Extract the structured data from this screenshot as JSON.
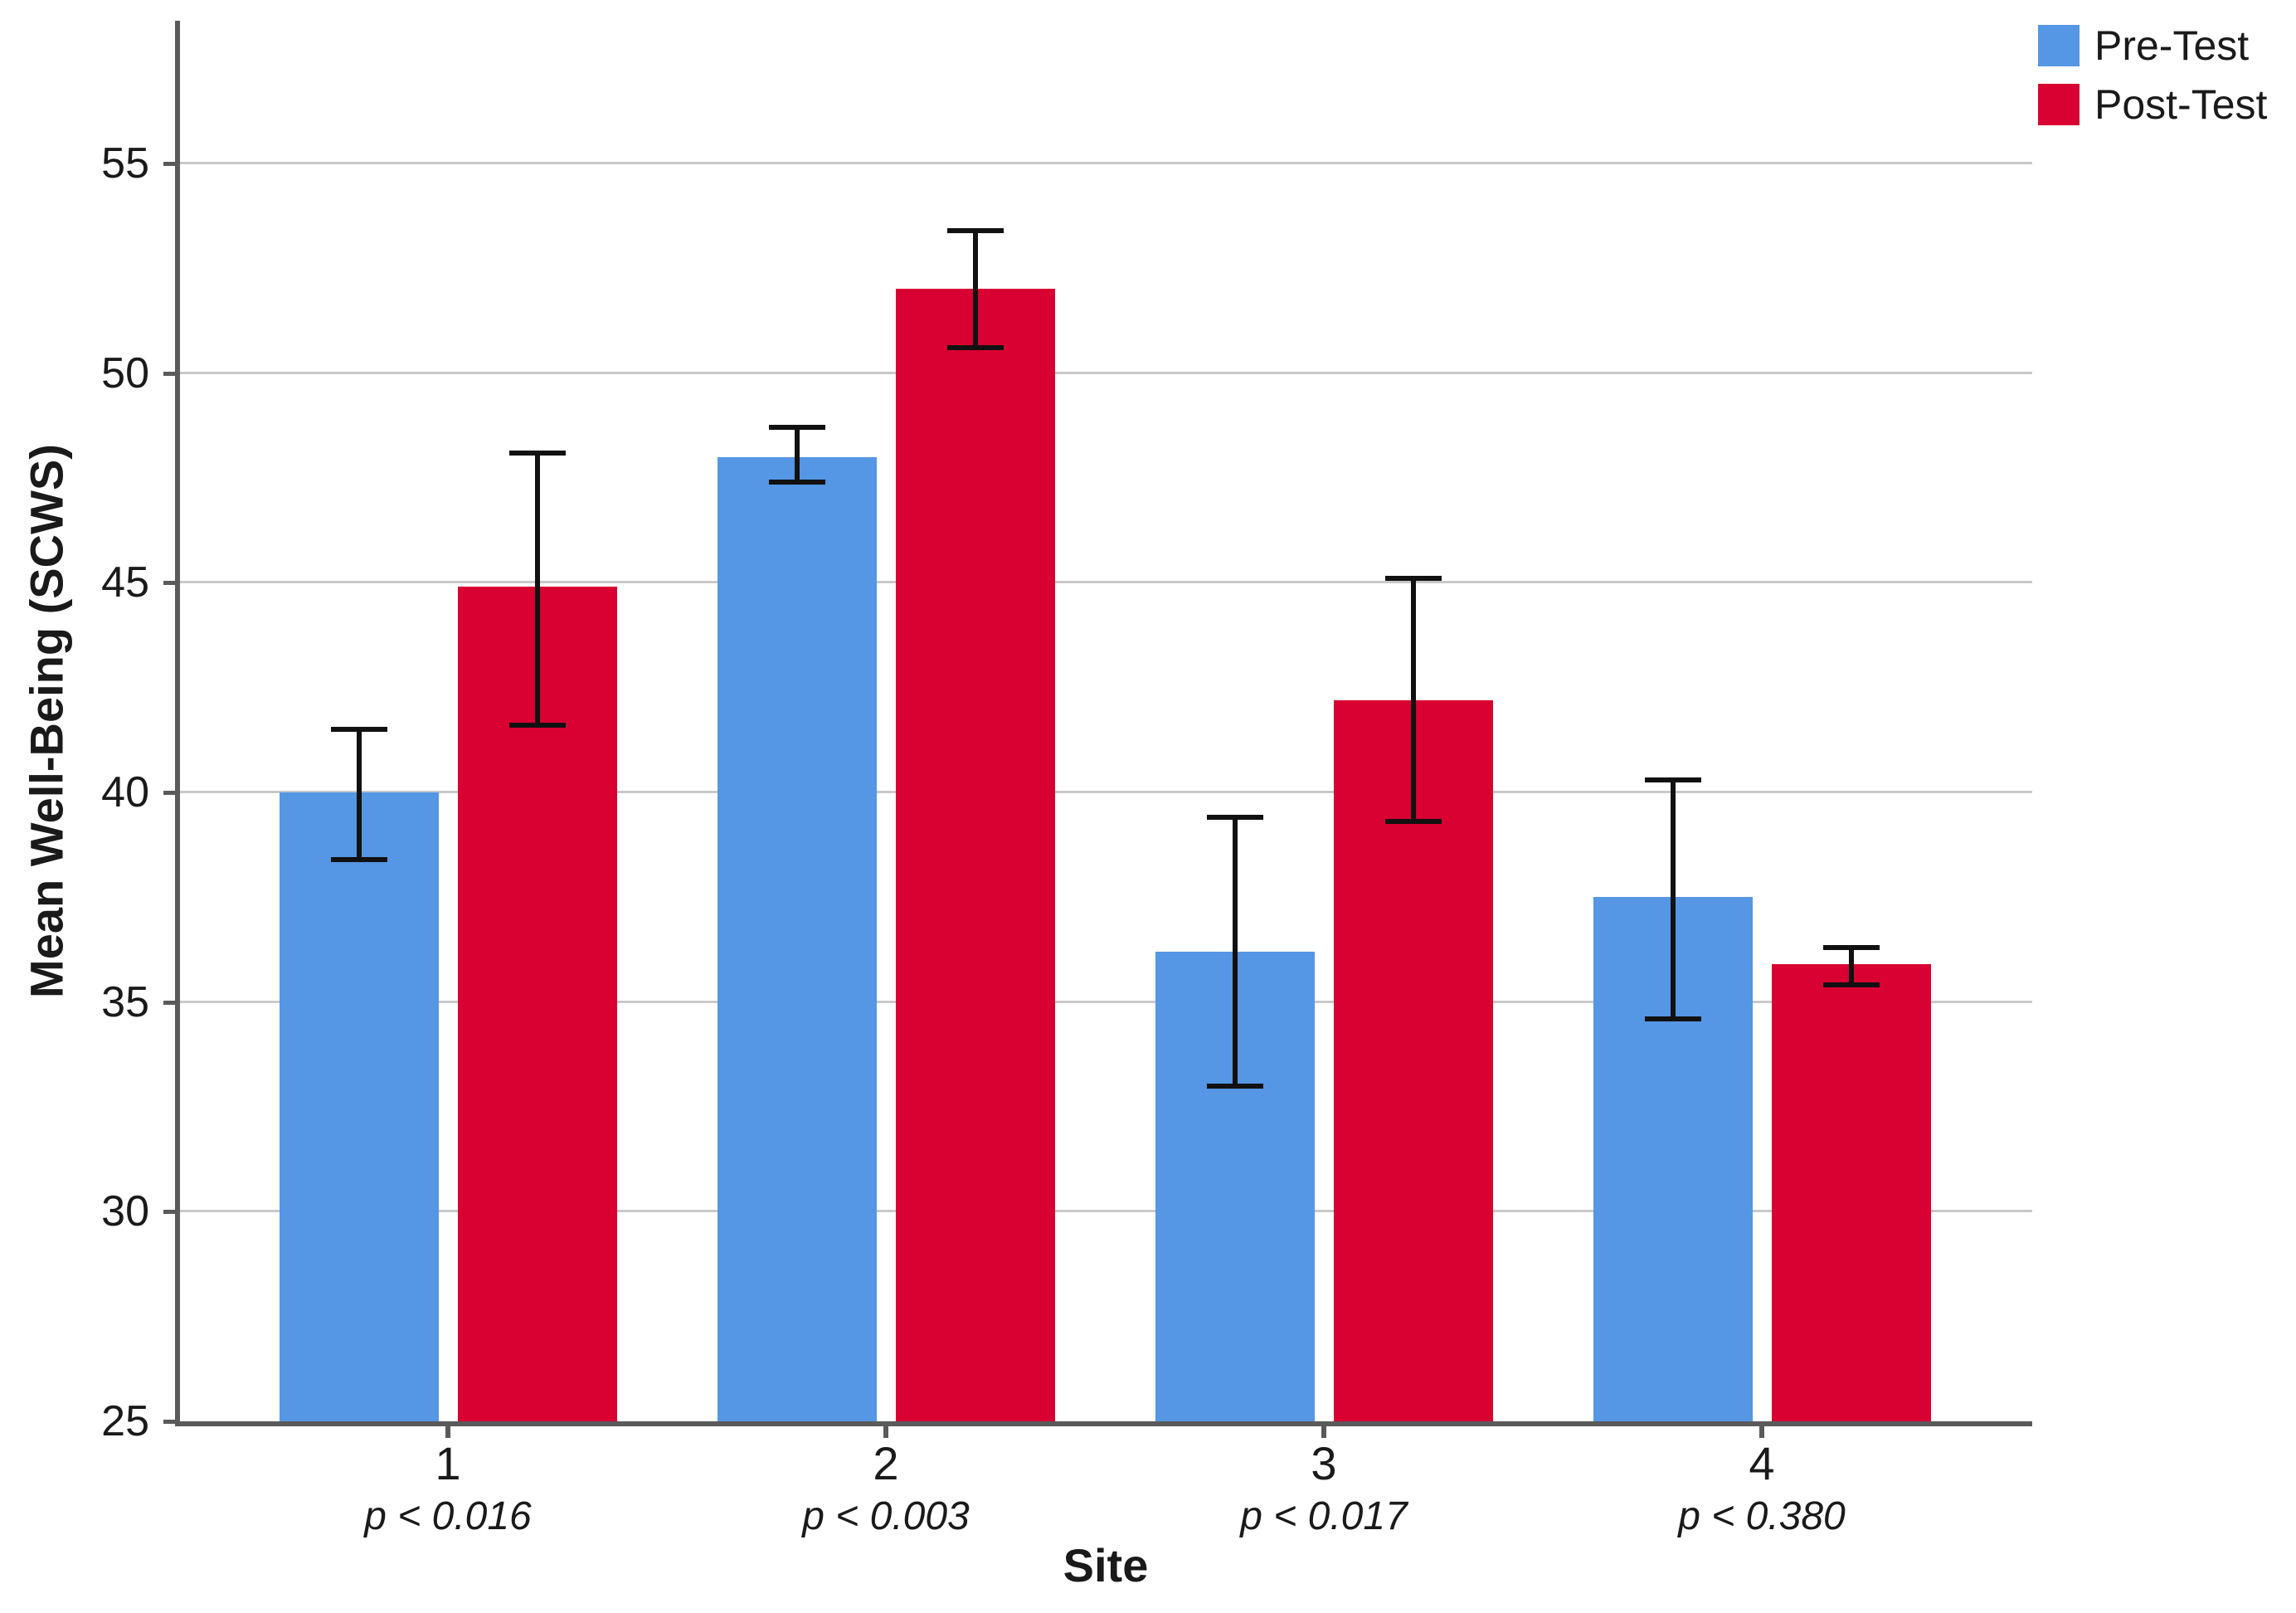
{
  "chart_data": {
    "type": "bar",
    "title": "",
    "xlabel": "Site",
    "ylabel": "Mean Well-Being (SCWS)",
    "ylim": [
      25,
      58.4
    ],
    "yticks": [
      25,
      30,
      35,
      40,
      45,
      50,
      55
    ],
    "grid": "horizontal-light-gray",
    "legend_position": "top-right-outside",
    "error_bars": true,
    "categories": [
      {
        "label": "1",
        "sublabel": "p < 0.016"
      },
      {
        "label": "2",
        "sublabel": "p < 0.003"
      },
      {
        "label": "3",
        "sublabel": "p < 0.017"
      },
      {
        "label": "4",
        "sublabel": "p < 0.380"
      }
    ],
    "series": [
      {
        "name": "Pre-Test",
        "color": "#5596E5",
        "values": [
          40.0,
          48.0,
          36.2,
          37.5
        ],
        "error_low": [
          38.4,
          47.4,
          33.0,
          34.6
        ],
        "error_high": [
          41.5,
          48.7,
          39.4,
          40.3
        ]
      },
      {
        "name": "Post-Test",
        "color": "#D90032",
        "values": [
          44.9,
          52.0,
          42.2,
          35.9
        ],
        "error_low": [
          41.6,
          50.6,
          39.3,
          35.4
        ],
        "error_high": [
          48.1,
          53.4,
          45.1,
          36.3
        ]
      }
    ]
  },
  "colors": {
    "gridline": "#C9C9C9",
    "axis": "#5A5A5A",
    "error_bar": "#111111",
    "text": "#1A1A1A",
    "background": "#FFFFFF"
  }
}
